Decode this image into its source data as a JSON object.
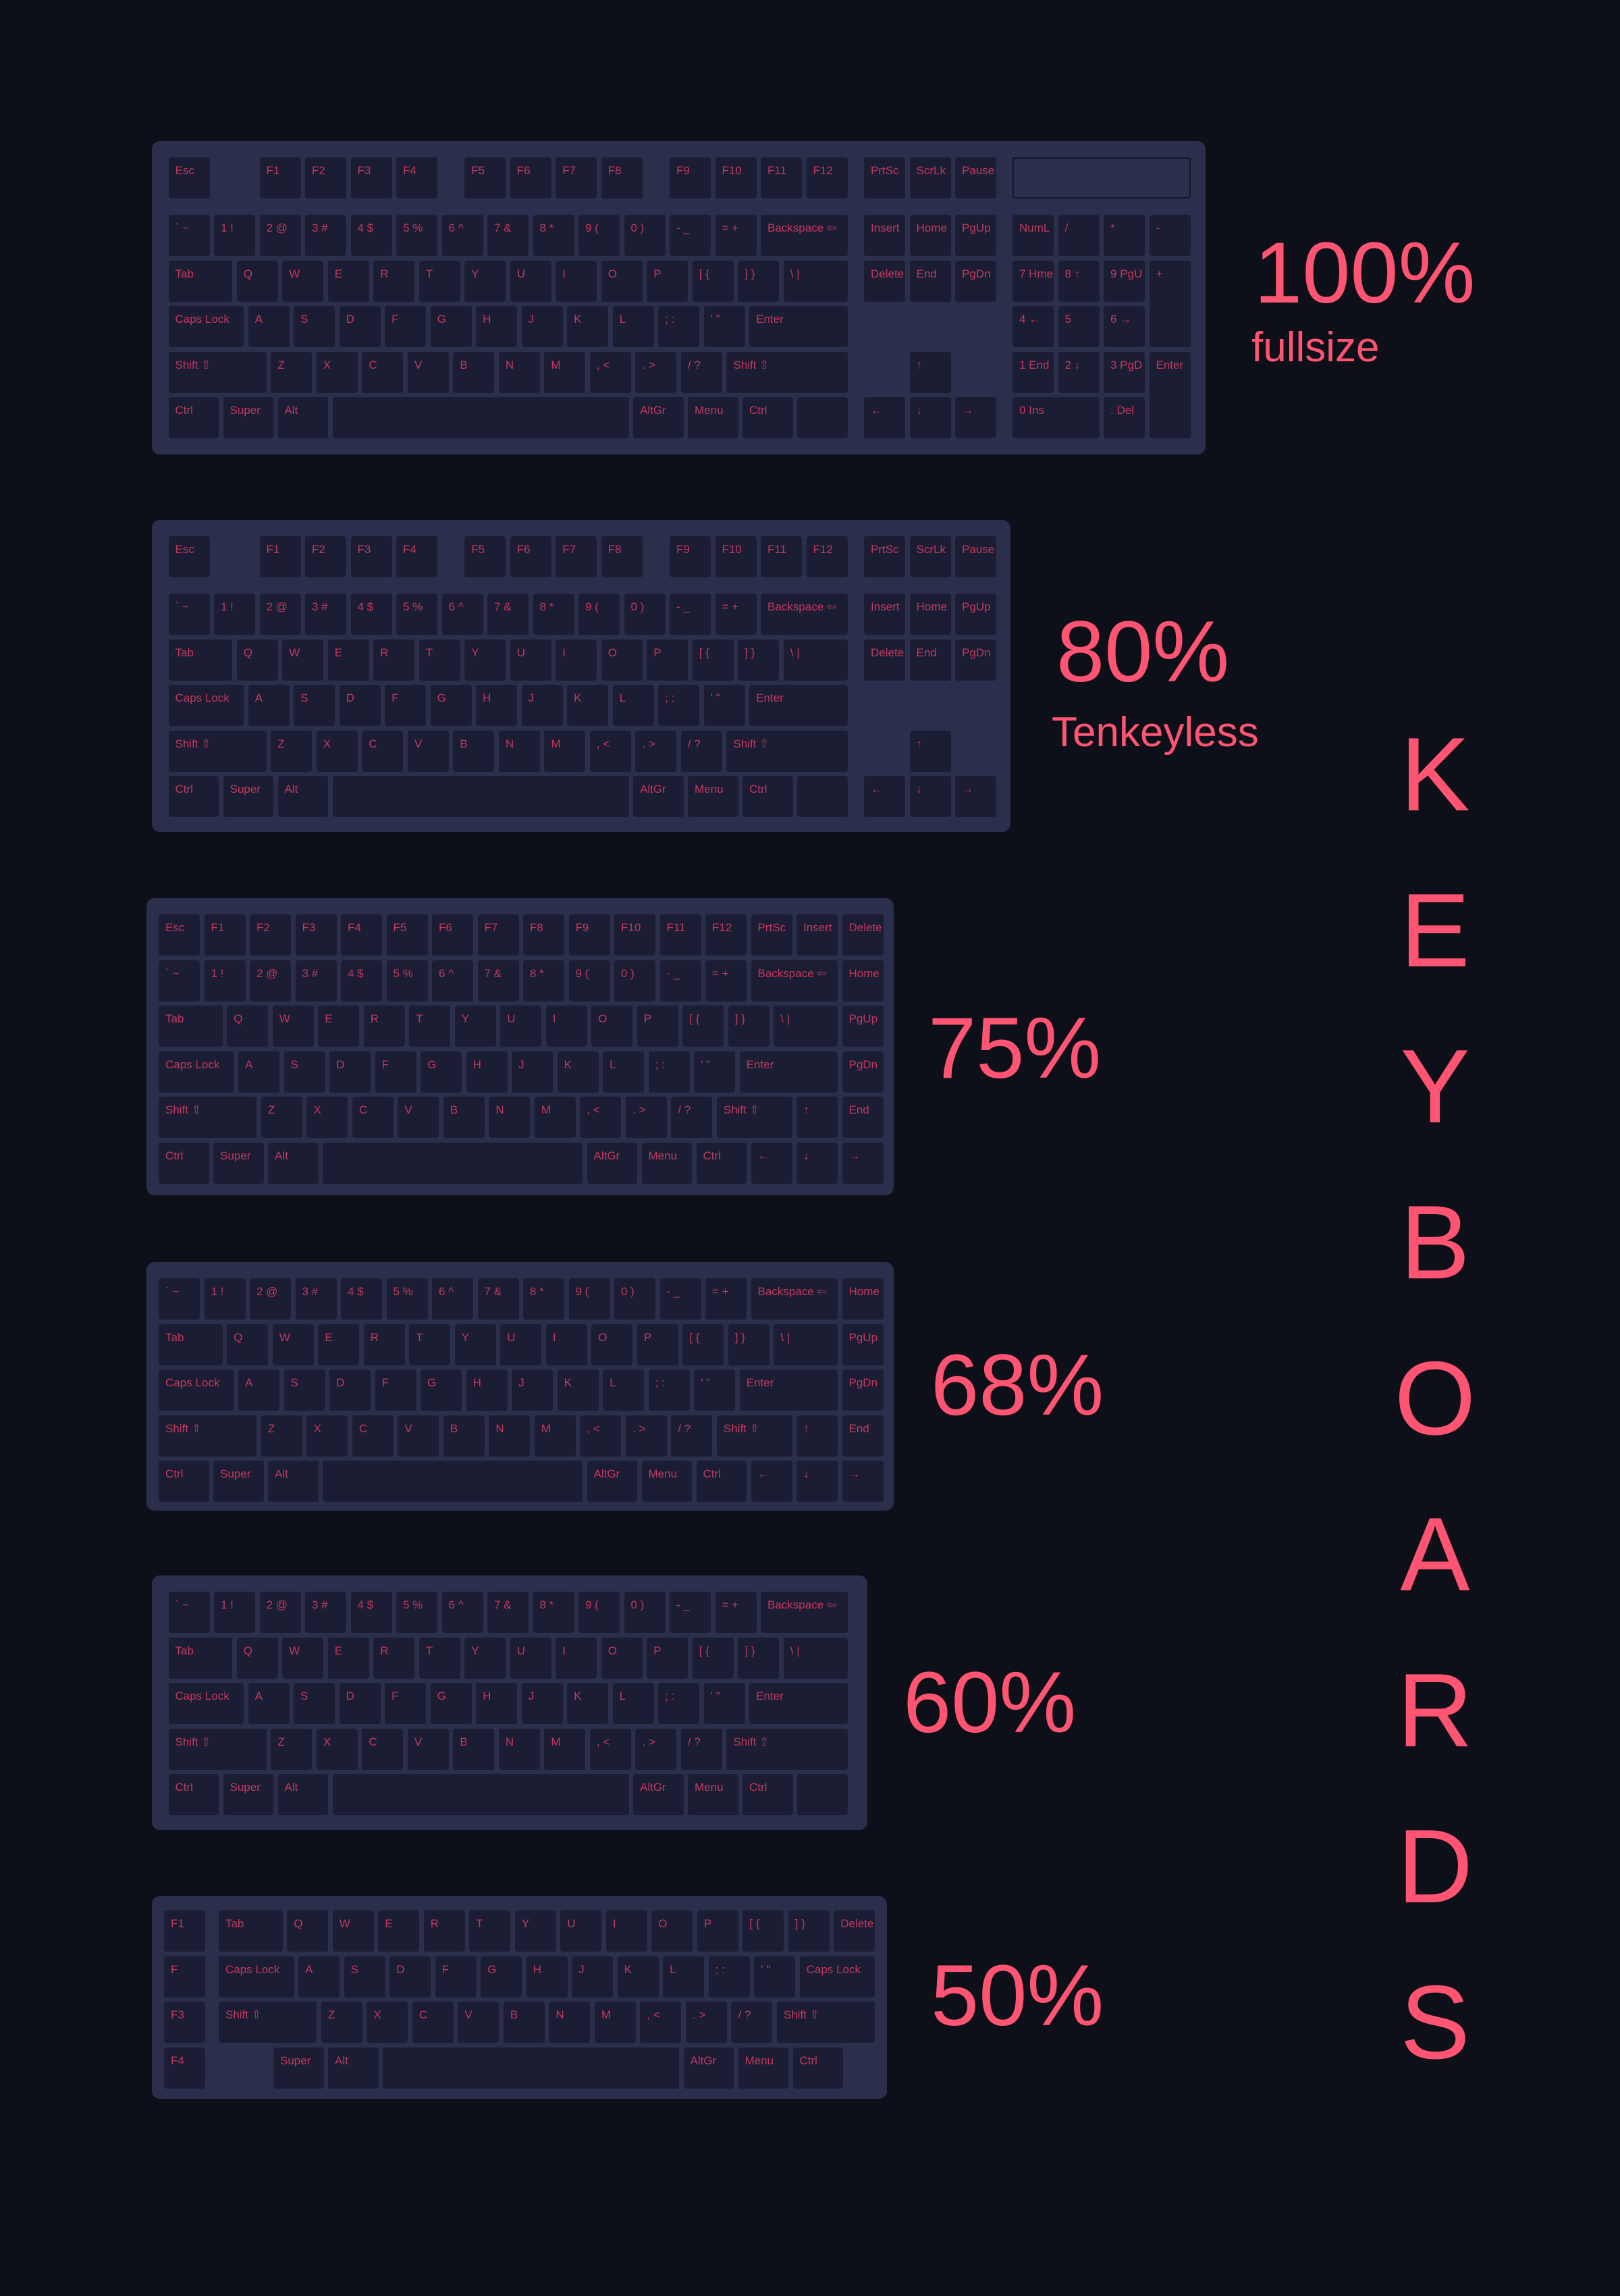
{
  "colors": {
    "background": "#0e1019",
    "frame": "#2c2f4b",
    "key": "#1a1d34",
    "key_label": "#c4385c",
    "accent": "#ff5573"
  },
  "title_vertical": [
    "K",
    "E",
    "Y",
    "B",
    "O",
    "A",
    "R",
    "D",
    "S"
  ],
  "keyboards": [
    {
      "id": "fullsize",
      "label": "100%",
      "sublabel": "fullsize",
      "rows": [
        [
          "Esc",
          "F1",
          "F2",
          "F3",
          "F4",
          "F5",
          "F6",
          "F7",
          "F8",
          "F9",
          "F10",
          "F11",
          "F12"
        ],
        [
          "PrtSc",
          "ScrLk",
          "Pause"
        ],
        [
          "` ~",
          "1 !",
          "2 @",
          "3 #",
          "4 $",
          "5 %",
          "6 ^",
          "7 &",
          "8 *",
          "9 (",
          "0 )",
          "- _",
          "= +",
          "Backspace ⇦"
        ],
        [
          "Tab",
          "Q",
          "W",
          "E",
          "R",
          "T",
          "Y",
          "U",
          "I",
          "O",
          "P",
          "[ {",
          "] }",
          "\\ |"
        ],
        [
          "Caps Lock",
          "A",
          "S",
          "D",
          "F",
          "G",
          "H",
          "J",
          "K",
          "L",
          "; :",
          "' \"",
          "Enter"
        ],
        [
          "Shift ⇧",
          "Z",
          "X",
          "C",
          "V",
          "B",
          "N",
          "M",
          ", <",
          ". >",
          "/ ?",
          "Shift ⇧"
        ],
        [
          "Ctrl",
          "Super",
          "Alt",
          "",
          "AltGr",
          "Menu",
          "Ctrl",
          ""
        ],
        [
          "Insert",
          "Home",
          "PgUp"
        ],
        [
          "Delete",
          "End",
          "PgDn"
        ],
        [
          "↑"
        ],
        [
          "←",
          "↓",
          "→"
        ],
        [
          "NumL",
          "/",
          "*",
          "-"
        ],
        [
          "7 Hme",
          "8 ↑",
          "9 PgU",
          "+"
        ],
        [
          "4 ←",
          "5",
          "6 →"
        ],
        [
          "1 End",
          "2 ↓",
          "3 PgD",
          "Enter"
        ],
        [
          "0 Ins",
          ". Del"
        ]
      ]
    },
    {
      "id": "tenkeyless",
      "label": "80%",
      "sublabel": "Tenkeyless",
      "rows": [
        [
          "Esc",
          "F1",
          "F2",
          "F3",
          "F4",
          "F5",
          "F6",
          "F7",
          "F8",
          "F9",
          "F10",
          "F11",
          "F12"
        ],
        [
          "PrtSc",
          "ScrLk",
          "Pause"
        ],
        [
          "` ~",
          "1 !",
          "2 @",
          "3 #",
          "4 $",
          "5 %",
          "6 ^",
          "7 &",
          "8 *",
          "9 (",
          "0 )",
          "- _",
          "= +",
          "Backspace ⇦"
        ],
        [
          "Tab",
          "Q",
          "W",
          "E",
          "R",
          "T",
          "Y",
          "U",
          "I",
          "O",
          "P",
          "[ {",
          "] }",
          "\\ |"
        ],
        [
          "Caps Lock",
          "A",
          "S",
          "D",
          "F",
          "G",
          "H",
          "J",
          "K",
          "L",
          "; :",
          "' \"",
          "Enter"
        ],
        [
          "Shift ⇧",
          "Z",
          "X",
          "C",
          "V",
          "B",
          "N",
          "M",
          ", <",
          ". >",
          "/ ?",
          "Shift ⇧"
        ],
        [
          "Ctrl",
          "Super",
          "Alt",
          "",
          "AltGr",
          "Menu",
          "Ctrl",
          ""
        ],
        [
          "Insert",
          "Home",
          "PgUp"
        ],
        [
          "Delete",
          "End",
          "PgDn"
        ],
        [
          "↑"
        ],
        [
          "←",
          "↓",
          "→"
        ]
      ]
    },
    {
      "id": "75",
      "label": "75%",
      "rows": [
        [
          "Esc",
          "F1",
          "F2",
          "F3",
          "F4",
          "F5",
          "F6",
          "F7",
          "F8",
          "F9",
          "F10",
          "F11",
          "F12",
          "PrtSc",
          "Insert",
          "Delete"
        ],
        [
          "` ~",
          "1 !",
          "2 @",
          "3 #",
          "4 $",
          "5 %",
          "6 ^",
          "7 &",
          "8 *",
          "9 (",
          "0 )",
          "- _",
          "= +",
          "Backspace ⇦",
          "Home"
        ],
        [
          "Tab",
          "Q",
          "W",
          "E",
          "R",
          "T",
          "Y",
          "U",
          "I",
          "O",
          "P",
          "[ {",
          "] }",
          "\\ |",
          "PgUp"
        ],
        [
          "Caps Lock",
          "A",
          "S",
          "D",
          "F",
          "G",
          "H",
          "J",
          "K",
          "L",
          "; :",
          "' \"",
          "Enter",
          "PgDn"
        ],
        [
          "Shift ⇧",
          "Z",
          "X",
          "C",
          "V",
          "B",
          "N",
          "M",
          ", <",
          ". >",
          "/ ?",
          "Shift ⇧",
          "↑",
          "End"
        ],
        [
          "Ctrl",
          "Super",
          "Alt",
          "",
          "AltGr",
          "Menu",
          "Ctrl",
          "←",
          "↓",
          "→"
        ]
      ]
    },
    {
      "id": "68",
      "label": "68%",
      "rows": [
        [
          "` ~",
          "1 !",
          "2 @",
          "3 #",
          "4 $",
          "5 %",
          "6 ^",
          "7 &",
          "8 *",
          "9 (",
          "0 )",
          "- _",
          "= +",
          "Backspace ⇦",
          "Home"
        ],
        [
          "Tab",
          "Q",
          "W",
          "E",
          "R",
          "T",
          "Y",
          "U",
          "I",
          "O",
          "P",
          "[ {",
          "] }",
          "\\ |",
          "PgUp"
        ],
        [
          "Caps Lock",
          "A",
          "S",
          "D",
          "F",
          "G",
          "H",
          "J",
          "K",
          "L",
          "; :",
          "' \"",
          "Enter",
          "PgDn"
        ],
        [
          "Shift ⇧",
          "Z",
          "X",
          "C",
          "V",
          "B",
          "N",
          "M",
          ", <",
          ". >",
          "/ ?",
          "Shift ⇧",
          "↑",
          "End"
        ],
        [
          "Ctrl",
          "Super",
          "Alt",
          "",
          "AltGr",
          "Menu",
          "Ctrl",
          "←",
          "↓",
          "→"
        ]
      ]
    },
    {
      "id": "60",
      "label": "60%",
      "rows": [
        [
          "` ~",
          "1 !",
          "2 @",
          "3 #",
          "4 $",
          "5 %",
          "6 ^",
          "7 &",
          "8 *",
          "9 (",
          "0 )",
          "- _",
          "= +",
          "Backspace ⇦"
        ],
        [
          "Tab",
          "Q",
          "W",
          "E",
          "R",
          "T",
          "Y",
          "U",
          "I",
          "O",
          "P",
          "[ {",
          "] }",
          "\\ |"
        ],
        [
          "Caps Lock",
          "A",
          "S",
          "D",
          "F",
          "G",
          "H",
          "J",
          "K",
          "L",
          "; :",
          "' \"",
          "Enter"
        ],
        [
          "Shift ⇧",
          "Z",
          "X",
          "C",
          "V",
          "B",
          "N",
          "M",
          ", <",
          ". >",
          "/ ?",
          "Shift ⇧"
        ],
        [
          "Ctrl",
          "Super",
          "Alt",
          "",
          "AltGr",
          "Menu",
          "Ctrl",
          ""
        ]
      ]
    },
    {
      "id": "50",
      "label": "50%",
      "rows": [
        [
          "F1",
          "Tab",
          "Q",
          "W",
          "E",
          "R",
          "T",
          "Y",
          "U",
          "I",
          "O",
          "P",
          "[ {",
          "] }",
          "Delete"
        ],
        [
          "F",
          "Caps Lock",
          "A",
          "S",
          "D",
          "F",
          "G",
          "H",
          "J",
          "K",
          "L",
          "; :",
          "' \"",
          "Caps Lock"
        ],
        [
          "F3",
          "Shift ⇧",
          "Z",
          "X",
          "C",
          "V",
          "B",
          "N",
          "M",
          ", <",
          ". >",
          "/ ?",
          "Shift ⇧"
        ],
        [
          "F4",
          "Super",
          "Alt",
          "",
          "AltGr",
          "Menu",
          "Ctrl"
        ]
      ]
    }
  ]
}
